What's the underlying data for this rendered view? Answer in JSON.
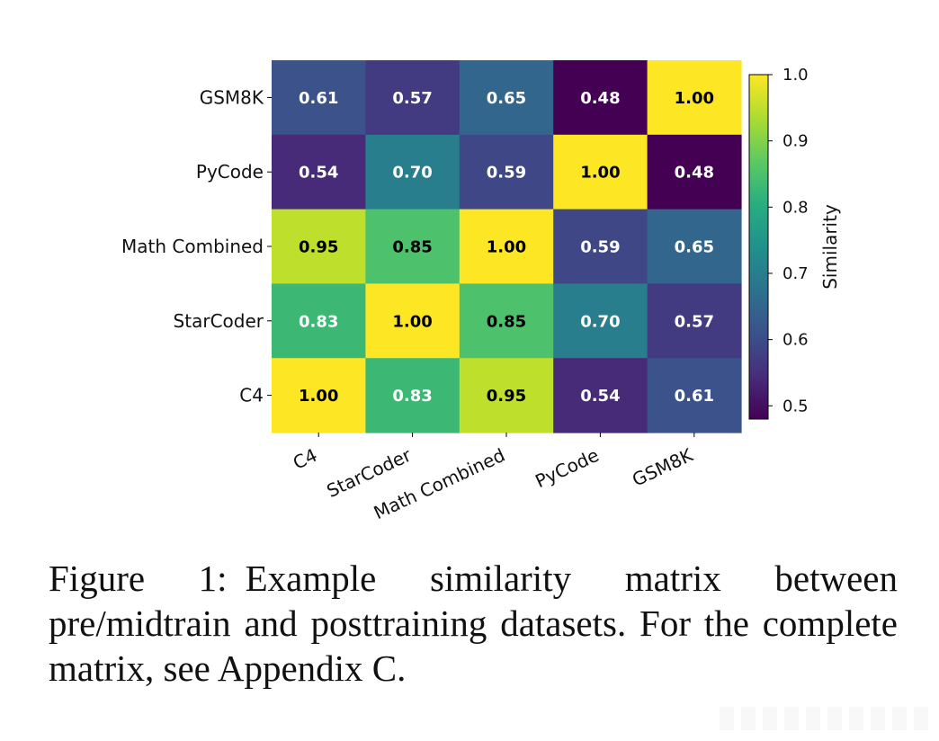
{
  "chart_data": {
    "type": "heatmap",
    "title": "",
    "row_labels": [
      "GSM8K",
      "PyCode",
      "Math Combined",
      "StarCoder",
      "C4"
    ],
    "col_labels": [
      "C4",
      "StarCoder",
      "Math Combined",
      "PyCode",
      "GSM8K"
    ],
    "values": [
      [
        0.61,
        0.57,
        0.65,
        0.48,
        1.0
      ],
      [
        0.54,
        0.7,
        0.59,
        1.0,
        0.48
      ],
      [
        0.95,
        0.85,
        1.0,
        0.59,
        0.65
      ],
      [
        0.83,
        1.0,
        0.85,
        0.7,
        0.57
      ],
      [
        1.0,
        0.83,
        0.95,
        0.54,
        0.61
      ]
    ],
    "cell_text": [
      [
        "0.61",
        "0.57",
        "0.65",
        "0.48",
        "1.00"
      ],
      [
        "0.54",
        "0.70",
        "0.59",
        "1.00",
        "0.48"
      ],
      [
        "0.95",
        "0.85",
        "1.00",
        "0.59",
        "0.65"
      ],
      [
        "0.83",
        "1.00",
        "0.85",
        "0.70",
        "0.57"
      ],
      [
        "1.00",
        "0.83",
        "0.95",
        "0.54",
        "0.61"
      ]
    ],
    "colorbar": {
      "label": "Similarity",
      "range": [
        0.48,
        1.0
      ],
      "ticks": [
        0.5,
        0.6,
        0.7,
        0.8,
        0.9,
        1.0
      ],
      "tick_labels": [
        "0.5",
        "0.6",
        "0.7",
        "0.8",
        "0.9",
        "1.0"
      ],
      "colormap": "viridis"
    }
  },
  "caption": {
    "label": "Figure 1:",
    "text": "Example similarity matrix between pre/midtrain and posttraining datasets. For the complete matrix, see Appendix C."
  }
}
